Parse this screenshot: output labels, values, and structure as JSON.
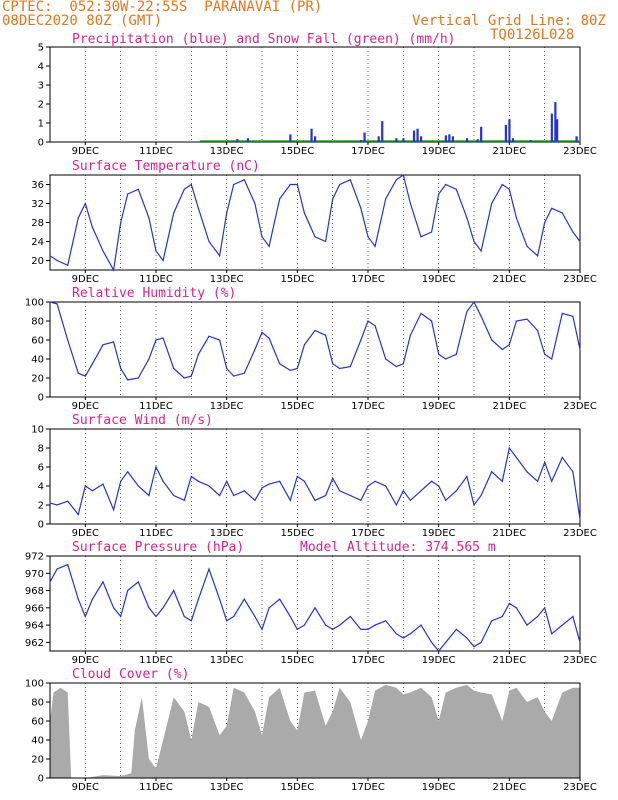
{
  "header": {
    "left_line1": "CPTEC:  052:30W-22:55S  PARANAVAI (PR)",
    "left_line2": "08DEC2020 80Z (GMT)",
    "right_line1": "Vertical Grid Line: 80Z",
    "right_line2": "TQ0126L028"
  },
  "x_ticks": [
    "9DEC",
    "11DEC",
    "13DEC",
    "15DEC",
    "17DEC",
    "19DEC",
    "21DEC",
    "23DEC"
  ],
  "colors": {
    "header": "#e8731a",
    "title": "#e0208a",
    "series": "#2233dd",
    "snow": "#22aa22",
    "cloud": "#aaaaaa"
  },
  "chart_data": [
    {
      "type": "bar",
      "title": "Precipitation (blue) and Snow Fall (green) (mm/h)",
      "ylim": [
        0,
        5
      ],
      "yticks": [
        0,
        1,
        2,
        3,
        4,
        5
      ],
      "series": [
        {
          "name": "Precipitation",
          "color": "#2233dd",
          "points": [
            [
              13.3,
              0.15
            ],
            [
              13.6,
              0.2
            ],
            [
              14.8,
              0.4
            ],
            [
              15.4,
              0.7
            ],
            [
              15.5,
              0.3
            ],
            [
              16.8,
              0.1
            ],
            [
              16.9,
              0.5
            ],
            [
              17.3,
              0.3
            ],
            [
              17.4,
              1.1
            ],
            [
              17.8,
              0.2
            ],
            [
              18.0,
              0.2
            ],
            [
              18.3,
              0.6
            ],
            [
              18.4,
              0.7
            ],
            [
              18.5,
              0.3
            ],
            [
              19.2,
              0.35
            ],
            [
              19.3,
              0.4
            ],
            [
              19.4,
              0.3
            ],
            [
              19.8,
              0.2
            ],
            [
              20.1,
              0.15
            ],
            [
              20.2,
              0.8
            ],
            [
              20.9,
              0.9
            ],
            [
              21.0,
              1.2
            ],
            [
              21.1,
              0.2
            ],
            [
              21.6,
              0.1
            ],
            [
              22.2,
              1.5
            ],
            [
              22.3,
              2.1
            ],
            [
              22.35,
              1.2
            ],
            [
              22.9,
              0.3
            ]
          ]
        },
        {
          "name": "Snow Fall",
          "color": "#22aa22",
          "points": []
        }
      ]
    },
    {
      "type": "line",
      "title": "Surface Temperature (nC)",
      "ylim": [
        18,
        38
      ],
      "yticks": [
        20,
        24,
        28,
        32,
        36
      ],
      "x": [
        8.0,
        8.2,
        8.5,
        8.8,
        9.0,
        9.2,
        9.5,
        9.8,
        10.0,
        10.2,
        10.5,
        10.8,
        11.0,
        11.2,
        11.5,
        11.8,
        12.0,
        12.2,
        12.5,
        12.8,
        13.0,
        13.2,
        13.5,
        13.8,
        14.0,
        14.2,
        14.5,
        14.8,
        15.0,
        15.2,
        15.5,
        15.8,
        16.0,
        16.2,
        16.5,
        16.8,
        17.0,
        17.2,
        17.5,
        17.8,
        18.0,
        18.2,
        18.5,
        18.8,
        19.0,
        19.2,
        19.5,
        19.8,
        20.0,
        20.2,
        20.5,
        20.8,
        21.0,
        21.2,
        21.5,
        21.8,
        22.0,
        22.2,
        22.5,
        22.8,
        23.0
      ],
      "values": [
        21,
        20,
        19,
        29,
        32,
        27,
        22,
        18,
        28,
        34,
        35,
        29,
        22,
        20,
        30,
        35,
        36,
        31,
        24,
        21,
        30,
        36,
        37,
        32,
        25,
        23,
        33,
        36,
        36,
        30,
        25,
        24,
        33,
        36,
        37,
        31,
        25,
        23,
        33,
        37,
        38,
        32,
        25,
        26,
        34,
        36,
        35,
        29,
        24,
        22,
        32,
        36,
        35,
        29,
        23,
        21,
        28,
        31,
        30,
        26,
        24
      ]
    },
    {
      "type": "line",
      "title": "Relative Humidity (%)",
      "ylim": [
        0,
        100
      ],
      "yticks": [
        0,
        20,
        40,
        60,
        80,
        100
      ],
      "x": [
        8.0,
        8.2,
        8.5,
        8.8,
        9.0,
        9.2,
        9.5,
        9.8,
        10.0,
        10.2,
        10.5,
        10.8,
        11.0,
        11.2,
        11.5,
        11.8,
        12.0,
        12.2,
        12.5,
        12.8,
        13.0,
        13.2,
        13.5,
        13.8,
        14.0,
        14.2,
        14.5,
        14.8,
        15.0,
        15.2,
        15.5,
        15.8,
        16.0,
        16.2,
        16.5,
        16.8,
        17.0,
        17.2,
        17.5,
        17.8,
        18.0,
        18.2,
        18.5,
        18.8,
        19.0,
        19.2,
        19.5,
        19.8,
        20.0,
        20.2,
        20.5,
        20.8,
        21.0,
        21.2,
        21.5,
        21.8,
        22.0,
        22.2,
        22.5,
        22.8,
        23.0
      ],
      "values": [
        100,
        98,
        60,
        25,
        22,
        35,
        55,
        58,
        30,
        18,
        20,
        40,
        60,
        62,
        30,
        20,
        22,
        45,
        64,
        60,
        30,
        22,
        25,
        50,
        68,
        62,
        35,
        28,
        30,
        55,
        70,
        65,
        35,
        30,
        32,
        60,
        80,
        75,
        40,
        32,
        35,
        65,
        88,
        80,
        45,
        40,
        45,
        90,
        100,
        85,
        60,
        50,
        55,
        80,
        82,
        70,
        45,
        40,
        88,
        85,
        50
      ]
    },
    {
      "type": "line",
      "title": "Surface Wind (m/s)",
      "ylim": [
        0,
        10
      ],
      "yticks": [
        0,
        2,
        4,
        6,
        8,
        10
      ],
      "x": [
        8.0,
        8.2,
        8.5,
        8.8,
        9.0,
        9.2,
        9.5,
        9.8,
        10.0,
        10.2,
        10.5,
        10.8,
        11.0,
        11.2,
        11.5,
        11.8,
        12.0,
        12.2,
        12.5,
        12.8,
        13.0,
        13.2,
        13.5,
        13.8,
        14.0,
        14.2,
        14.5,
        14.8,
        15.0,
        15.2,
        15.5,
        15.8,
        16.0,
        16.2,
        16.5,
        16.8,
        17.0,
        17.2,
        17.5,
        17.8,
        18.0,
        18.2,
        18.5,
        18.8,
        19.0,
        19.2,
        19.5,
        19.8,
        20.0,
        20.2,
        20.5,
        20.8,
        21.0,
        21.2,
        21.5,
        21.8,
        22.0,
        22.2,
        22.5,
        22.8,
        23.0
      ],
      "values": [
        2.2,
        2.0,
        2.4,
        1.0,
        4.0,
        3.5,
        4.2,
        1.5,
        4.5,
        5.5,
        4.0,
        3.0,
        6.0,
        4.5,
        3.0,
        2.5,
        5.0,
        4.5,
        4.0,
        3.0,
        4.5,
        3.0,
        3.5,
        2.5,
        3.8,
        4.2,
        4.5,
        2.5,
        5.0,
        4.5,
        2.5,
        3.0,
        4.8,
        3.5,
        3.0,
        2.5,
        4.0,
        4.5,
        4.0,
        2.0,
        3.5,
        2.5,
        3.5,
        4.5,
        4.0,
        2.5,
        3.5,
        5.0,
        2.0,
        3.0,
        5.5,
        4.5,
        8.0,
        7.0,
        5.5,
        4.5,
        6.5,
        4.5,
        7.0,
        5.5,
        0.5
      ]
    },
    {
      "type": "line",
      "title": "Surface Pressure (hPa)",
      "annotation": "Model Altitude: 374.565 m",
      "ylim": [
        961,
        972
      ],
      "yticks": [
        962,
        964,
        966,
        968,
        970,
        972
      ],
      "x": [
        8.0,
        8.2,
        8.5,
        8.8,
        9.0,
        9.2,
        9.5,
        9.8,
        10.0,
        10.2,
        10.5,
        10.8,
        11.0,
        11.2,
        11.5,
        11.8,
        12.0,
        12.2,
        12.5,
        12.8,
        13.0,
        13.2,
        13.5,
        13.8,
        14.0,
        14.2,
        14.5,
        14.8,
        15.0,
        15.2,
        15.5,
        15.8,
        16.0,
        16.2,
        16.5,
        16.8,
        17.0,
        17.2,
        17.5,
        17.8,
        18.0,
        18.2,
        18.5,
        18.8,
        19.0,
        19.2,
        19.5,
        19.8,
        20.0,
        20.2,
        20.5,
        20.8,
        21.0,
        21.2,
        21.5,
        21.8,
        22.0,
        22.2,
        22.5,
        22.8,
        23.0
      ],
      "values": [
        969,
        970.5,
        971,
        967,
        965,
        967,
        969,
        966,
        965,
        968,
        969,
        966,
        965,
        966,
        968,
        965,
        964.5,
        967,
        970.5,
        967,
        964.5,
        965,
        967,
        965,
        963.5,
        966,
        967,
        965,
        963.5,
        964,
        966,
        964,
        963.5,
        964,
        965,
        963.5,
        963.5,
        964,
        964.5,
        963,
        962.5,
        963,
        964,
        962,
        961,
        962,
        963.5,
        962.5,
        961.5,
        962,
        964.5,
        965,
        966.5,
        966,
        964,
        965,
        966,
        963,
        964,
        965,
        962
      ]
    },
    {
      "type": "area",
      "title": "Cloud Cover (%)",
      "ylim": [
        0,
        100
      ],
      "yticks": [
        0,
        20,
        40,
        60,
        80,
        100
      ],
      "x": [
        8.0,
        8.1,
        8.3,
        8.5,
        8.6,
        9.0,
        9.5,
        10.0,
        10.3,
        10.4,
        10.6,
        10.8,
        11.0,
        11.2,
        11.5,
        11.8,
        12.0,
        12.2,
        12.5,
        12.8,
        13.0,
        13.2,
        13.5,
        13.8,
        14.0,
        14.2,
        14.5,
        14.8,
        15.0,
        15.2,
        15.5,
        15.8,
        16.0,
        16.2,
        16.5,
        16.8,
        17.0,
        17.2,
        17.5,
        17.8,
        18.0,
        18.2,
        18.5,
        18.8,
        19.0,
        19.2,
        19.5,
        19.8,
        20.0,
        20.2,
        20.5,
        20.8,
        21.0,
        21.2,
        21.5,
        21.8,
        22.0,
        22.2,
        22.5,
        22.8,
        23.0
      ],
      "values": [
        60,
        90,
        95,
        90,
        0,
        0,
        3,
        2,
        5,
        50,
        85,
        20,
        10,
        40,
        85,
        70,
        40,
        80,
        75,
        45,
        55,
        95,
        90,
        70,
        45,
        85,
        95,
        60,
        50,
        90,
        92,
        55,
        70,
        95,
        80,
        40,
        60,
        92,
        98,
        95,
        88,
        90,
        95,
        85,
        60,
        90,
        95,
        98,
        92,
        90,
        88,
        60,
        92,
        95,
        80,
        85,
        70,
        60,
        90,
        95,
        95
      ]
    }
  ]
}
